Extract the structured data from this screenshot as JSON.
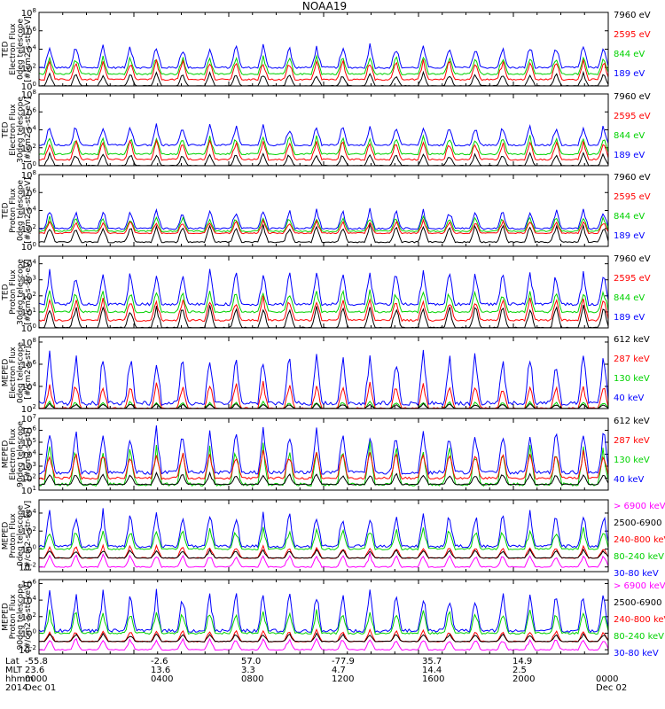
{
  "title": "NOAA19",
  "colors": {
    "black": "#000000",
    "red": "#ff0000",
    "green": "#00d200",
    "blue": "#0000ff",
    "magenta": "#ff00ff"
  },
  "footer": {
    "row_labels": [
      "Lat",
      "MLT",
      "hhmm",
      "2014"
    ],
    "ticks": [
      {
        "lat": "-55.8",
        "mlt": "23.6",
        "hhmm": "0000",
        "date": "Dec 01"
      },
      {
        "lat": "-2.6",
        "mlt": "13.6",
        "hhmm": "0400",
        "date": ""
      },
      {
        "lat": "57.0",
        "mlt": "3.3",
        "hhmm": "0800",
        "date": ""
      },
      {
        "lat": "-77.9",
        "mlt": "4.7",
        "hhmm": "1200",
        "date": ""
      },
      {
        "lat": "35.7",
        "mlt": "14.4",
        "hhmm": "1600",
        "date": ""
      },
      {
        "lat": "14.9",
        "mlt": "2.5",
        "hhmm": "2000",
        "date": ""
      },
      {
        "lat": "",
        "mlt": "",
        "hhmm": "0000",
        "date": "Dec 02"
      }
    ]
  },
  "chart_data": [
    {
      "type": "line",
      "ylabel": [
        "TED",
        "Electron Flux",
        "0deg telescope",
        "[#/cm2-s-str-eV]"
      ],
      "ylog": true,
      "ytick_labels": [
        "10^0",
        "10^2",
        "10^4",
        "10^6",
        "10^8"
      ],
      "ylim": [
        1,
        100000000
      ],
      "xlim": [
        0,
        24
      ],
      "x_unit": "hours",
      "series": [
        {
          "name": "7960 eV",
          "color": "black",
          "typical_values": [
            1,
            30
          ]
        },
        {
          "name": "2595 eV",
          "color": "red",
          "typical_values": [
            5,
            1000
          ]
        },
        {
          "name": "844 eV",
          "color": "green",
          "typical_values": [
            20,
            3000
          ]
        },
        {
          "name": "189 eV",
          "color": "blue",
          "typical_values": [
            100,
            50000
          ]
        }
      ]
    },
    {
      "type": "line",
      "ylabel": [
        "TED",
        "Electron Flux",
        "30deg telescope",
        "[#/cm2-s-str-eV]"
      ],
      "ylog": true,
      "ytick_labels": [
        "10^0",
        "10^2",
        "10^4",
        "10^6",
        "10^8"
      ],
      "ylim": [
        1,
        100000000
      ],
      "xlim": [
        0,
        24
      ],
      "x_unit": "hours",
      "series": [
        {
          "name": "7960 eV",
          "color": "black",
          "typical_values": [
            1,
            30
          ]
        },
        {
          "name": "2595 eV",
          "color": "red",
          "typical_values": [
            5,
            1000
          ]
        },
        {
          "name": "844 eV",
          "color": "green",
          "typical_values": [
            20,
            3000
          ]
        },
        {
          "name": "189 eV",
          "color": "blue",
          "typical_values": [
            200,
            50000
          ]
        }
      ]
    },
    {
      "type": "line",
      "ylabel": [
        "TED",
        "Proton Flux",
        "0deg telescope",
        "[#/cm2-s-str-eV]"
      ],
      "ylog": true,
      "ytick_labels": [
        "10^0",
        "10^2",
        "10^4",
        "10^6",
        "10^8"
      ],
      "ylim": [
        1,
        100000000
      ],
      "xlim": [
        0,
        24
      ],
      "x_unit": "hours",
      "series": [
        {
          "name": "7960 eV",
          "color": "black",
          "typical_values": [
            3,
            300
          ]
        },
        {
          "name": "2595 eV",
          "color": "red",
          "typical_values": [
            30,
            1000
          ]
        },
        {
          "name": "844 eV",
          "color": "green",
          "typical_values": [
            50,
            3000
          ]
        },
        {
          "name": "189 eV",
          "color": "blue",
          "typical_values": [
            100,
            20000
          ]
        }
      ]
    },
    {
      "type": "line",
      "ylabel": [
        "TED",
        "Proton Flux",
        "30deg telescope",
        "[#/cm2-s-str-eV]"
      ],
      "ylog": true,
      "ytick_labels": [
        "10^0",
        "10^1",
        "10^2",
        "10^3",
        "10^4"
      ],
      "ylim": [
        1,
        30000
      ],
      "xlim": [
        0,
        24
      ],
      "x_unit": "hours",
      "series": [
        {
          "name": "7960 eV",
          "color": "black",
          "typical_values": [
            1,
            30
          ]
        },
        {
          "name": "2595 eV",
          "color": "red",
          "typical_values": [
            3,
            100
          ]
        },
        {
          "name": "844 eV",
          "color": "green",
          "typical_values": [
            10,
            300
          ]
        },
        {
          "name": "189 eV",
          "color": "blue",
          "typical_values": [
            30,
            5000
          ]
        }
      ]
    },
    {
      "type": "line",
      "ylabel": [
        "MEPED",
        "Electron Flux",
        "0deg telescope",
        "[#/cm2-s-str]"
      ],
      "ylog": true,
      "ytick_labels": [
        "10^2",
        "10^4",
        "10^6",
        "10^8"
      ],
      "ylim": [
        100,
        300000000
      ],
      "xlim": [
        0,
        24
      ],
      "x_unit": "hours",
      "series": [
        {
          "name": "612 keV",
          "color": "black",
          "typical_values": [
            100,
            300
          ]
        },
        {
          "name": "287 keV",
          "color": "red",
          "typical_values": [
            100,
            30000
          ]
        },
        {
          "name": "130 keV",
          "color": "green",
          "typical_values": [
            100,
            500
          ]
        },
        {
          "name": "40 keV",
          "color": "blue",
          "typical_values": [
            300,
            30000000
          ]
        }
      ]
    },
    {
      "type": "line",
      "ylabel": [
        "MEPED",
        "Electron Flux",
        "90deg telescope",
        "[#/cm2-s-str]"
      ],
      "ylog": true,
      "ytick_labels": [
        "10^1",
        "10^2",
        "10^3",
        "10^4",
        "10^5",
        "10^6",
        "10^7"
      ],
      "ylim": [
        10,
        10000000
      ],
      "xlim": [
        0,
        24
      ],
      "x_unit": "hours",
      "series": [
        {
          "name": "612 keV",
          "color": "black",
          "typical_values": [
            30,
            300
          ]
        },
        {
          "name": "287 keV",
          "color": "red",
          "typical_values": [
            100,
            30000
          ]
        },
        {
          "name": "130 keV",
          "color": "green",
          "typical_values": [
            30,
            100000
          ]
        },
        {
          "name": "40 keV",
          "color": "blue",
          "typical_values": [
            300,
            3000000
          ]
        }
      ]
    },
    {
      "type": "line",
      "ylabel": [
        "MEPED",
        "Proton Flux",
        "0deg telescope",
        "[#/cm2-s-str-keV]"
      ],
      "ylog": true,
      "ytick_labels": [
        "10^-2",
        "10^0",
        "10^2",
        "10^4"
      ],
      "ylim": [
        0.003,
        300000
      ],
      "xlim": [
        0,
        24
      ],
      "x_unit": "hours",
      "series": [
        {
          "name": "> 6900 keV",
          "color": "magenta",
          "typical_values": [
            0.01,
            0.3
          ]
        },
        {
          "name": "2500-6900",
          "color": "black",
          "typical_values": [
            0.1,
            1
          ]
        },
        {
          "name": "240-800 keV",
          "color": "red",
          "typical_values": [
            0.1,
            3
          ]
        },
        {
          "name": "80-240 keV",
          "color": "green",
          "typical_values": [
            1,
            300
          ]
        },
        {
          "name": "30-80 keV",
          "color": "blue",
          "typical_values": [
            2,
            30000
          ]
        }
      ]
    },
    {
      "type": "line",
      "ylabel": [
        "MEPED",
        "Proton Flux",
        "90deg telescope",
        "[#/cm2-s-str-keV]"
      ],
      "ylog": true,
      "ytick_labels": [
        "10^-2",
        "10^0",
        "10^2",
        "10^4",
        "10^6"
      ],
      "ylim": [
        0.003,
        3000000
      ],
      "xlim": [
        0,
        24
      ],
      "x_unit": "hours",
      "series": [
        {
          "name": "> 6900 keV",
          "color": "magenta",
          "typical_values": [
            0.01,
            0.3
          ]
        },
        {
          "name": "2500-6900",
          "color": "black",
          "typical_values": [
            0.1,
            1
          ]
        },
        {
          "name": "240-800 keV",
          "color": "red",
          "typical_values": [
            0.1,
            3
          ]
        },
        {
          "name": "80-240 keV",
          "color": "green",
          "typical_values": [
            1,
            1000
          ]
        },
        {
          "name": "30-80 keV",
          "color": "blue",
          "typical_values": [
            2,
            300000
          ]
        }
      ]
    }
  ]
}
